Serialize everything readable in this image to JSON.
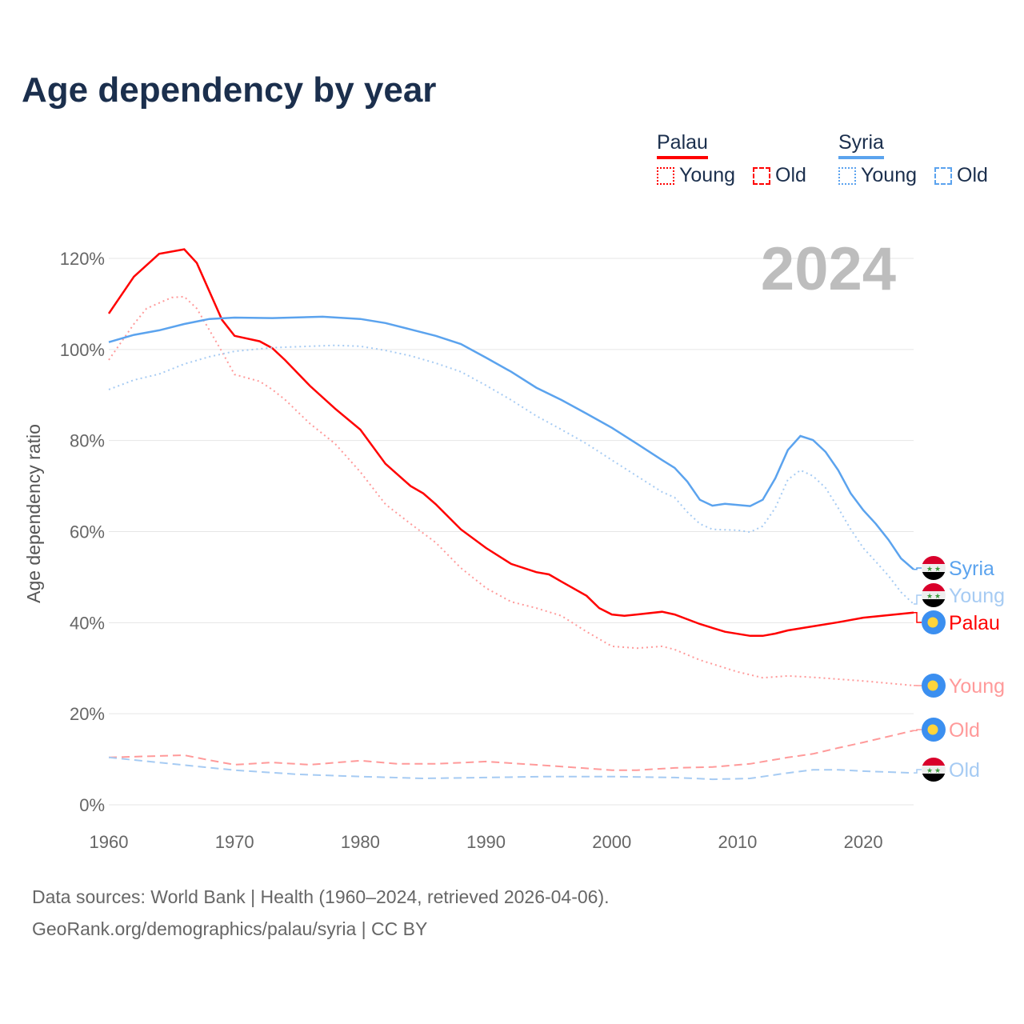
{
  "title": "Age dependency by year",
  "legend": {
    "groups": [
      {
        "name": "Palau",
        "color": "#ff0000",
        "young": "Young",
        "old": "Old"
      },
      {
        "name": "Syria",
        "color": "#5ba3ee",
        "young": "Young",
        "old": "Old"
      }
    ]
  },
  "footer": {
    "line1": "Data sources: World Bank | Health (1960–2024, retrieved 2026-04-06).",
    "line2": "GeoRank.org/demographics/palau/syria | CC BY"
  },
  "chart_data": {
    "type": "line",
    "title": "Age dependency by year",
    "year_label": "2024",
    "xlabel": "",
    "ylabel": "Age dependency ratio",
    "xlim": [
      1960,
      2024
    ],
    "ylim": [
      0,
      120
    ],
    "xticks": [
      1960,
      1970,
      1980,
      1990,
      2000,
      2010,
      2020
    ],
    "yticks": [
      0,
      20,
      40,
      60,
      80,
      100,
      120
    ],
    "ytick_labels": [
      "0%",
      "20%",
      "40%",
      "60%",
      "80%",
      "100%",
      "120%"
    ],
    "grid": true,
    "series": [
      {
        "name": "Palau",
        "label": "Palau",
        "country": "Palau",
        "kind": "total",
        "color": "#ff0000",
        "style": "solid",
        "points": [
          [
            1960,
            107.9
          ],
          [
            1962,
            116
          ],
          [
            1964,
            121
          ],
          [
            1966,
            122
          ],
          [
            1967,
            119
          ],
          [
            1969,
            106.5
          ],
          [
            1970,
            103
          ],
          [
            1972,
            101.8
          ],
          [
            1973,
            100.3
          ],
          [
            1974,
            97.7
          ],
          [
            1976,
            92
          ],
          [
            1978,
            87
          ],
          [
            1980,
            82.4
          ],
          [
            1982,
            74.9
          ],
          [
            1984,
            70
          ],
          [
            1985,
            68.4
          ],
          [
            1986,
            66
          ],
          [
            1988,
            60.5
          ],
          [
            1990,
            56.4
          ],
          [
            1992,
            52.9
          ],
          [
            1994,
            51.1
          ],
          [
            1995,
            50.6
          ],
          [
            1996,
            49
          ],
          [
            1998,
            45.9
          ],
          [
            1999,
            43.2
          ],
          [
            2000,
            41.8
          ],
          [
            2001,
            41.5
          ],
          [
            2002,
            41.8
          ],
          [
            2004,
            42.4
          ],
          [
            2005,
            41.8
          ],
          [
            2007,
            39.7
          ],
          [
            2009,
            38
          ],
          [
            2011,
            37.1
          ],
          [
            2012,
            37.1
          ],
          [
            2013,
            37.6
          ],
          [
            2014,
            38.3
          ],
          [
            2016,
            39.2
          ],
          [
            2018,
            40.1
          ],
          [
            2020,
            41.1
          ],
          [
            2024,
            42.2
          ]
        ]
      },
      {
        "name": "Palau Young",
        "label": "Young",
        "country": "Palau",
        "kind": "young",
        "color": "#ff9a9a",
        "style": "dotted",
        "points": [
          [
            1960,
            97.7
          ],
          [
            1962,
            105.6
          ],
          [
            1963,
            109
          ],
          [
            1965,
            111.4
          ],
          [
            1966,
            111.6
          ],
          [
            1967,
            109
          ],
          [
            1969,
            99.5
          ],
          [
            1970,
            94.5
          ],
          [
            1972,
            93
          ],
          [
            1973,
            91.2
          ],
          [
            1974,
            89
          ],
          [
            1976,
            83.7
          ],
          [
            1978,
            79.3
          ],
          [
            1980,
            73.1
          ],
          [
            1982,
            66
          ],
          [
            1984,
            61.7
          ],
          [
            1986,
            57.6
          ],
          [
            1988,
            52
          ],
          [
            1990,
            47.6
          ],
          [
            1992,
            44.6
          ],
          [
            1994,
            43.2
          ],
          [
            1996,
            41.5
          ],
          [
            1998,
            38
          ],
          [
            2000,
            34.8
          ],
          [
            2002,
            34.4
          ],
          [
            2004,
            34.8
          ],
          [
            2005,
            34.1
          ],
          [
            2007,
            31.8
          ],
          [
            2010,
            29.2
          ],
          [
            2012,
            27.9
          ],
          [
            2014,
            28.3
          ],
          [
            2016,
            28
          ],
          [
            2020,
            27.2
          ],
          [
            2024,
            26.2
          ]
        ]
      },
      {
        "name": "Palau Old",
        "label": "Old",
        "country": "Palau",
        "kind": "old",
        "color": "#ff9a9a",
        "style": "dashed",
        "points": [
          [
            1960,
            10.4
          ],
          [
            1966,
            10.9
          ],
          [
            1968,
            9.8
          ],
          [
            1970,
            8.8
          ],
          [
            1973,
            9.3
          ],
          [
            1976,
            8.8
          ],
          [
            1980,
            9.7
          ],
          [
            1983,
            9
          ],
          [
            1986,
            9
          ],
          [
            1990,
            9.5
          ],
          [
            1995,
            8.6
          ],
          [
            2000,
            7.6
          ],
          [
            2002,
            7.6
          ],
          [
            2005,
            8.1
          ],
          [
            2008,
            8.3
          ],
          [
            2011,
            9
          ],
          [
            2014,
            10.4
          ],
          [
            2016,
            11.2
          ],
          [
            2018,
            12.5
          ],
          [
            2020,
            13.7
          ],
          [
            2024,
            16.3
          ]
        ]
      },
      {
        "name": "Syria",
        "label": "Syria",
        "country": "Syria",
        "kind": "total",
        "color": "#5ba3ee",
        "style": "solid",
        "points": [
          [
            1960,
            101.6
          ],
          [
            1962,
            103.2
          ],
          [
            1964,
            104.2
          ],
          [
            1966,
            105.6
          ],
          [
            1968,
            106.7
          ],
          [
            1970,
            107
          ],
          [
            1973,
            106.9
          ],
          [
            1977,
            107.2
          ],
          [
            1980,
            106.7
          ],
          [
            1982,
            105.8
          ],
          [
            1984,
            104.4
          ],
          [
            1986,
            103
          ],
          [
            1988,
            101.2
          ],
          [
            1990,
            98.2
          ],
          [
            1992,
            95.1
          ],
          [
            1994,
            91.6
          ],
          [
            1996,
            88.9
          ],
          [
            1998,
            85.9
          ],
          [
            2000,
            82.8
          ],
          [
            2002,
            79.3
          ],
          [
            2004,
            75.7
          ],
          [
            2005,
            74
          ],
          [
            2006,
            71
          ],
          [
            2007,
            67
          ],
          [
            2008,
            65.7
          ],
          [
            2009,
            66.1
          ],
          [
            2011,
            65.6
          ],
          [
            2012,
            67
          ],
          [
            2013,
            71.7
          ],
          [
            2014,
            77.9
          ],
          [
            2015,
            81
          ],
          [
            2016,
            80.1
          ],
          [
            2017,
            77.5
          ],
          [
            2018,
            73.5
          ],
          [
            2019,
            68.4
          ],
          [
            2020,
            64.7
          ],
          [
            2021,
            61.7
          ],
          [
            2022,
            58.2
          ],
          [
            2023,
            54.1
          ],
          [
            2024,
            51.7
          ]
        ]
      },
      {
        "name": "Syria Young",
        "label": "Young",
        "country": "Syria",
        "kind": "young",
        "color": "#a6cbf3",
        "style": "dotted",
        "points": [
          [
            1960,
            91.2
          ],
          [
            1962,
            93.3
          ],
          [
            1964,
            94.6
          ],
          [
            1966,
            96.8
          ],
          [
            1968,
            98.4
          ],
          [
            1970,
            99.6
          ],
          [
            1973,
            100.4
          ],
          [
            1976,
            100.7
          ],
          [
            1978,
            100.9
          ],
          [
            1980,
            100.7
          ],
          [
            1982,
            99.8
          ],
          [
            1984,
            98.6
          ],
          [
            1986,
            97
          ],
          [
            1988,
            95.1
          ],
          [
            1990,
            92.1
          ],
          [
            1992,
            88.9
          ],
          [
            1994,
            85.4
          ],
          [
            1996,
            82.4
          ],
          [
            1998,
            79.3
          ],
          [
            2000,
            75.7
          ],
          [
            2002,
            72.2
          ],
          [
            2004,
            68.7
          ],
          [
            2005,
            67.5
          ],
          [
            2006,
            64.3
          ],
          [
            2007,
            61.7
          ],
          [
            2008,
            60.5
          ],
          [
            2010,
            60.3
          ],
          [
            2011,
            59.9
          ],
          [
            2012,
            61.2
          ],
          [
            2013,
            65.2
          ],
          [
            2014,
            71.4
          ],
          [
            2015,
            73.5
          ],
          [
            2016,
            72.2
          ],
          [
            2017,
            69.6
          ],
          [
            2018,
            65.2
          ],
          [
            2019,
            60.5
          ],
          [
            2020,
            56.4
          ],
          [
            2021,
            53.4
          ],
          [
            2022,
            50.3
          ],
          [
            2023,
            46.7
          ],
          [
            2024,
            44.1
          ]
        ]
      },
      {
        "name": "Syria Old",
        "label": "Old",
        "country": "Syria",
        "kind": "old",
        "color": "#a6cbf3",
        "style": "dashed",
        "points": [
          [
            1960,
            10.4
          ],
          [
            1965,
            9
          ],
          [
            1970,
            7.6
          ],
          [
            1975,
            6.7
          ],
          [
            1980,
            6.2
          ],
          [
            1985,
            5.8
          ],
          [
            1990,
            6
          ],
          [
            1995,
            6.2
          ],
          [
            2000,
            6.2
          ],
          [
            2005,
            6
          ],
          [
            2008,
            5.6
          ],
          [
            2011,
            5.8
          ],
          [
            2014,
            7
          ],
          [
            2016,
            7.7
          ],
          [
            2018,
            7.7
          ],
          [
            2020,
            7.4
          ],
          [
            2024,
            7
          ]
        ]
      }
    ]
  }
}
